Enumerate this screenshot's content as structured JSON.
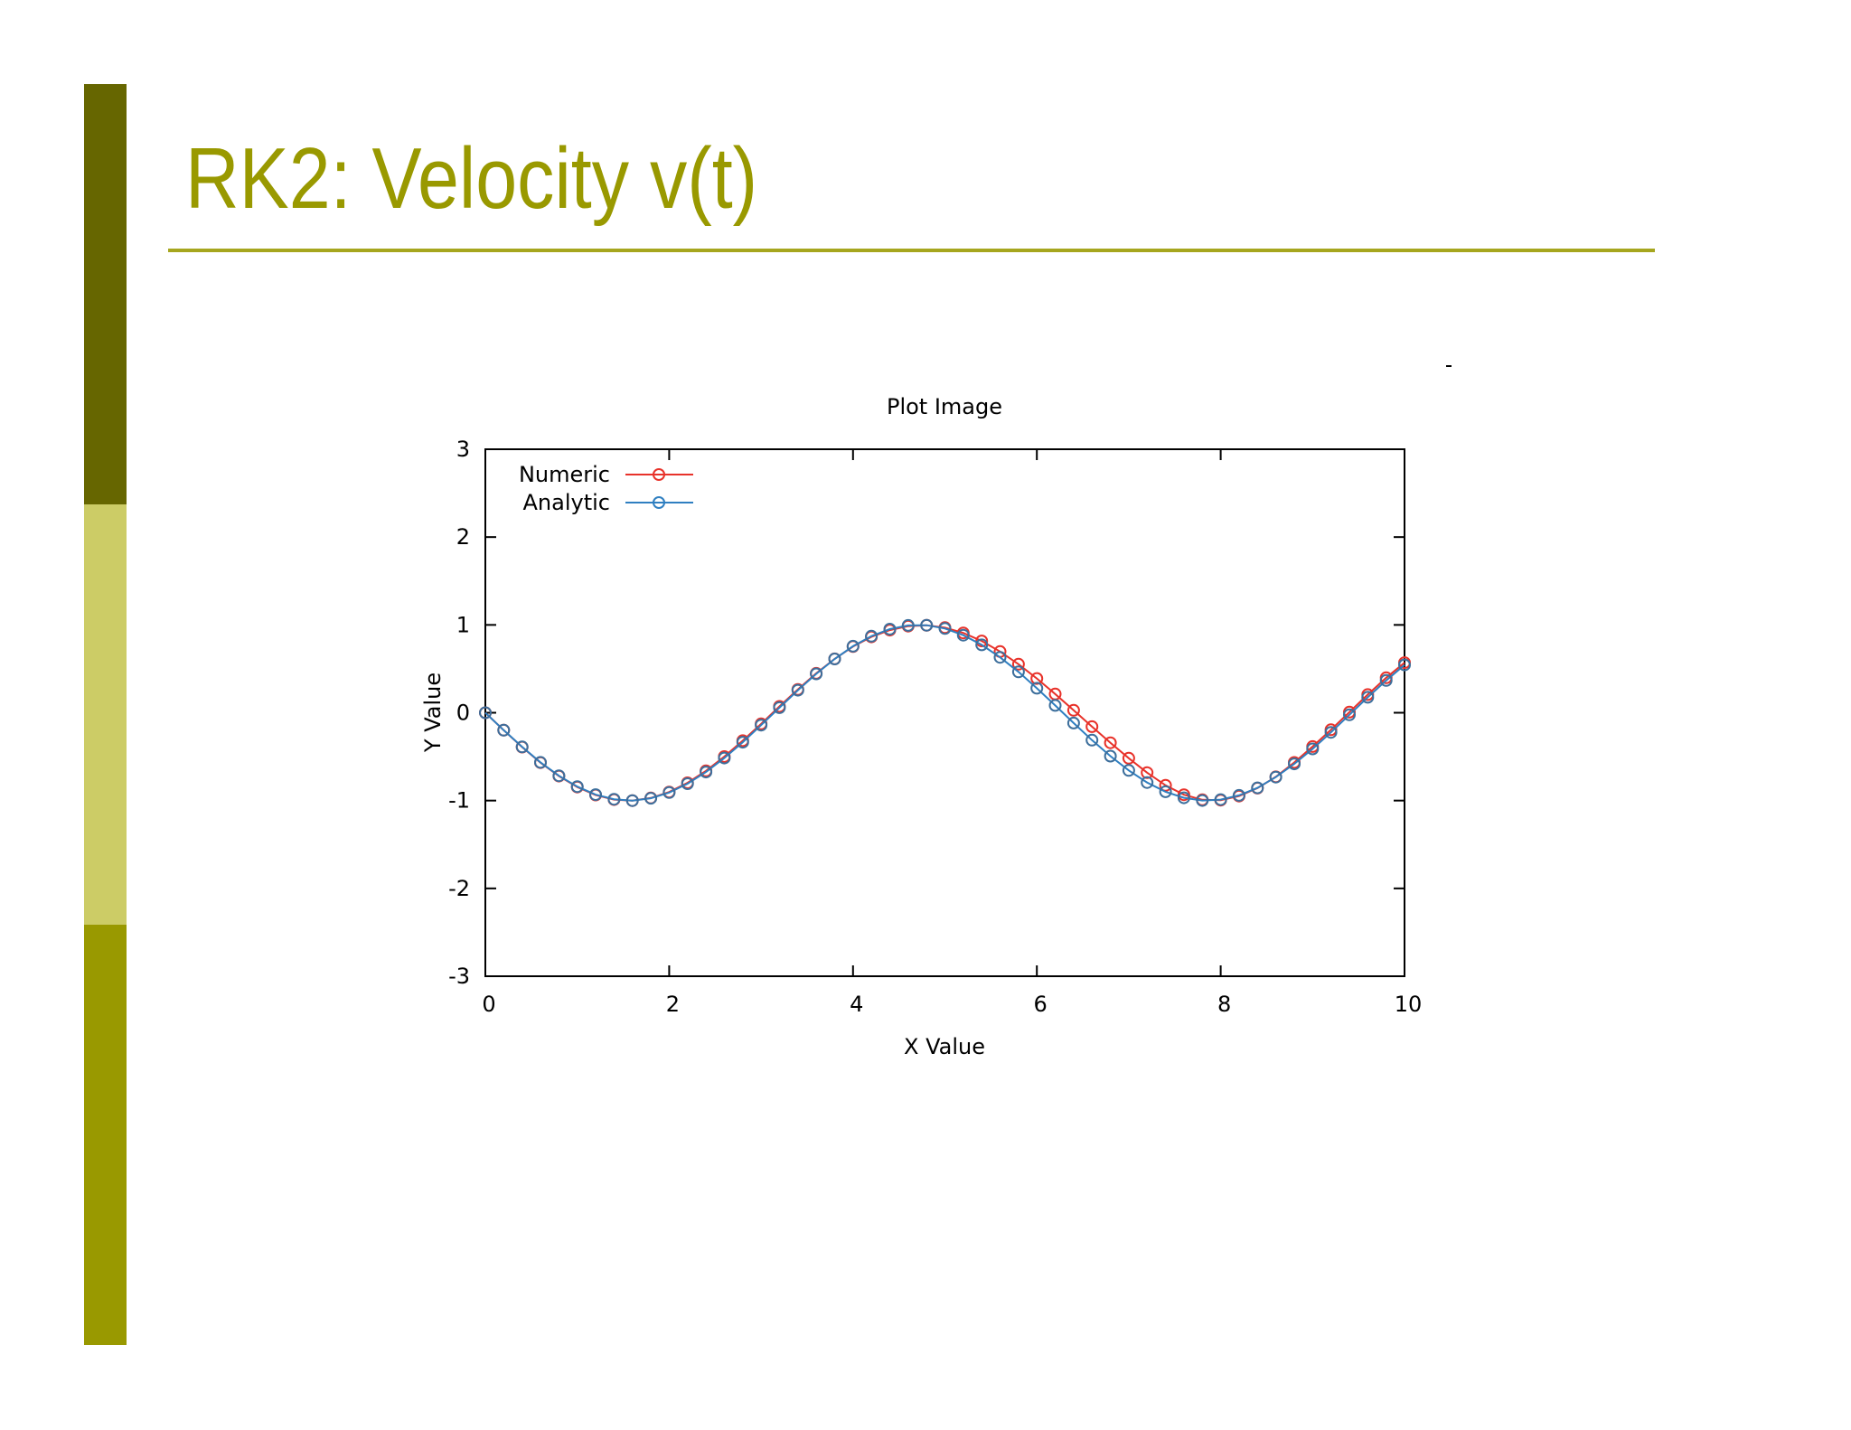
{
  "slide": {
    "title": "RK2: Velocity v(t)"
  },
  "colors": {
    "bar_top": "#666600",
    "bar_mid": "#cccc66",
    "bar_bottom": "#999900",
    "title": "#999900",
    "numeric": "#e8322a",
    "analytic": "#2f7fc1"
  },
  "chart_data": {
    "type": "line",
    "title": "Plot Image",
    "xlabel": "X Value",
    "ylabel": "Y Value",
    "xlim": [
      0,
      10
    ],
    "ylim": [
      -3,
      3
    ],
    "xticks": [
      0,
      2,
      4,
      6,
      8,
      10
    ],
    "yticks": [
      3,
      2,
      1,
      0,
      -1,
      -2,
      -3
    ],
    "legend_position": "top-left",
    "grid": false,
    "x": [
      0,
      0.2,
      0.4,
      0.6,
      0.8,
      1.0,
      1.2,
      1.4,
      1.6,
      1.8,
      2.0,
      2.2,
      2.4,
      2.6,
      2.8,
      3.0,
      3.2,
      3.4,
      3.6,
      3.8,
      4.0,
      4.2,
      4.4,
      4.6,
      4.8,
      5.0,
      5.2,
      5.4,
      5.6,
      5.8,
      6.0,
      6.2,
      6.4,
      6.6,
      6.8,
      7.0,
      7.2,
      7.4,
      7.6,
      7.8,
      8.0,
      8.2,
      8.4,
      8.6,
      8.8,
      9.0,
      9.2,
      9.4,
      9.6,
      9.8,
      10.0
    ],
    "series": [
      {
        "name": "Numeric",
        "color": "#e8322a",
        "values": [
          0,
          -0.199,
          -0.391,
          -0.568,
          -0.721,
          -0.846,
          -0.937,
          -0.989,
          -1.0,
          -0.971,
          -0.903,
          -0.798,
          -0.662,
          -0.499,
          -0.318,
          -0.127,
          0.072,
          0.266,
          0.449,
          0.613,
          0.753,
          0.863,
          0.941,
          0.986,
          0.995,
          0.969,
          0.909,
          0.817,
          0.697,
          0.553,
          0.39,
          0.213,
          0.028,
          -0.158,
          -0.342,
          -0.518,
          -0.682,
          -0.826,
          -0.933,
          -0.991,
          -0.995,
          -0.949,
          -0.858,
          -0.73,
          -0.566,
          -0.385,
          -0.193,
          0.007,
          0.207,
          0.398,
          0.57
        ]
      },
      {
        "name": "Analytic",
        "color": "#2f7fc1",
        "values": [
          0,
          -0.199,
          -0.389,
          -0.565,
          -0.717,
          -0.841,
          -0.932,
          -0.985,
          -1.0,
          -0.974,
          -0.909,
          -0.808,
          -0.675,
          -0.516,
          -0.335,
          -0.141,
          0.058,
          0.256,
          0.443,
          0.612,
          0.757,
          0.872,
          0.952,
          0.994,
          0.996,
          0.959,
          0.883,
          0.773,
          0.631,
          0.465,
          0.279,
          0.083,
          -0.117,
          -0.312,
          -0.494,
          -0.657,
          -0.794,
          -0.899,
          -0.968,
          -0.999,
          -0.989,
          -0.941,
          -0.855,
          -0.733,
          -0.582,
          -0.412,
          -0.223,
          -0.024,
          0.176,
          0.367,
          0.544
        ]
      }
    ]
  }
}
